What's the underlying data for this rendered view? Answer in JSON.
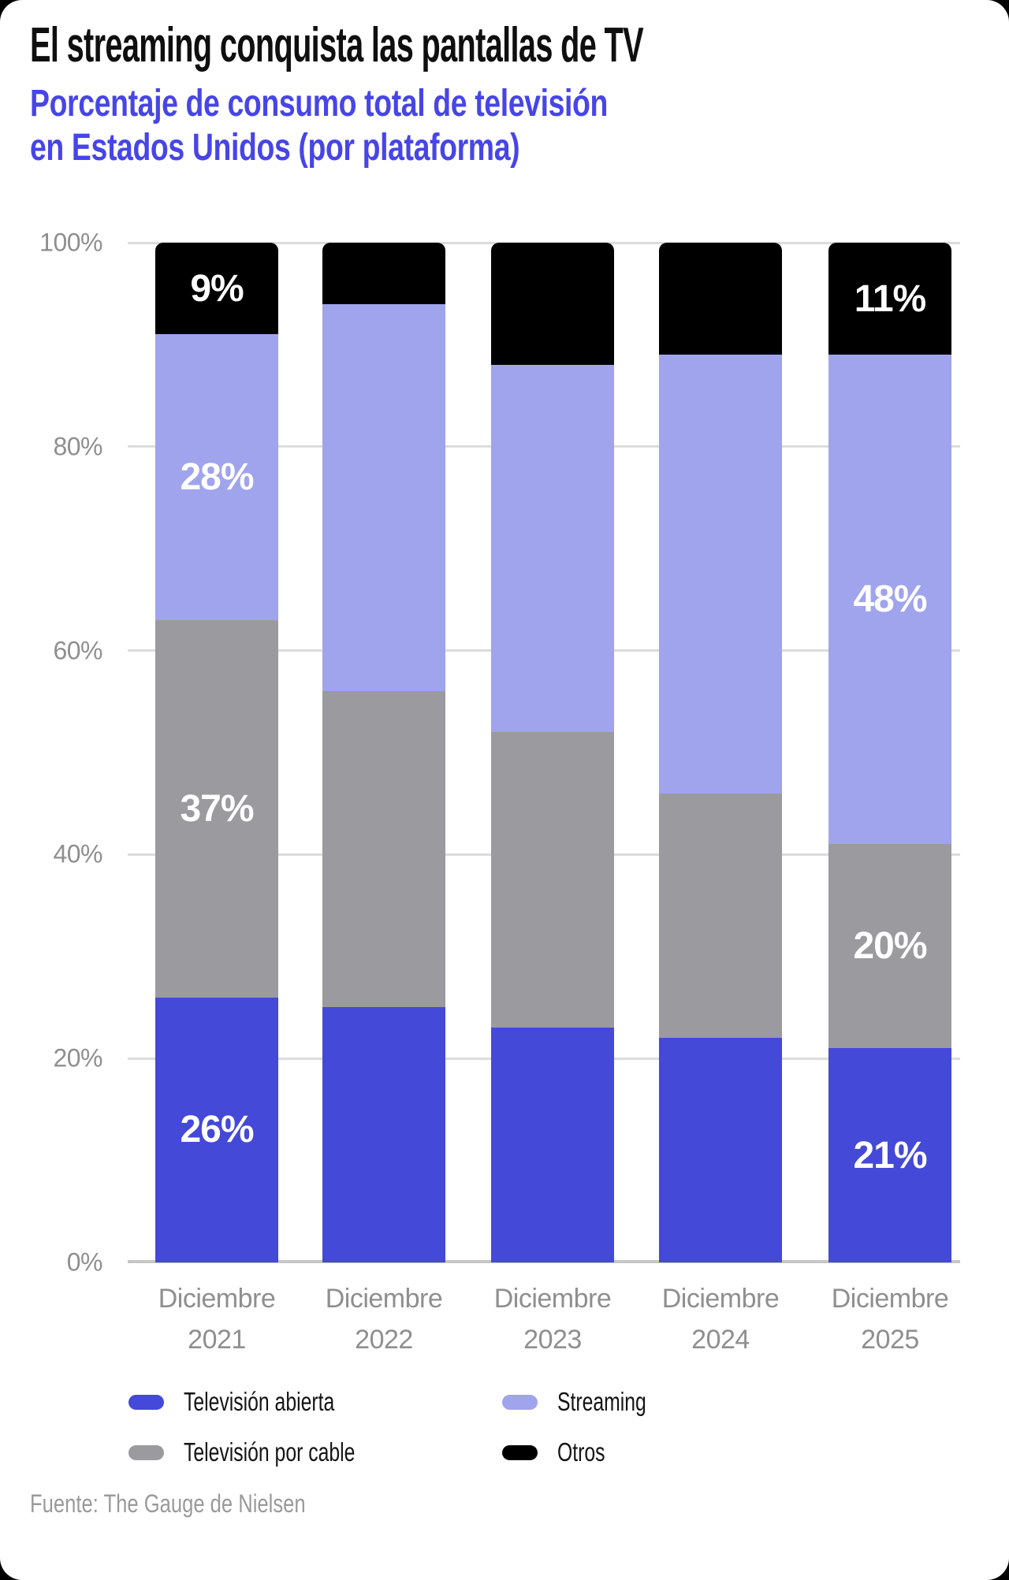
{
  "header": {
    "title": "El streaming conquista las pantallas de TV",
    "subtitle_line1": "Porcentaje de consumo total de televisión",
    "subtitle_line2": "en Estados Unidos (por plataforma)",
    "subtitle_color": "#4745e8"
  },
  "source": "Fuente: The Gauge de Nielsen",
  "chart_data": {
    "type": "bar",
    "stacked": true,
    "unit": "%",
    "title": "El streaming conquista las pantallas de TV",
    "subtitle": "Porcentaje de consumo total de televisión en Estados Unidos (por plataforma)",
    "categories": [
      "Diciembre 2021",
      "Diciembre 2022",
      "Diciembre 2023",
      "Diciembre 2024",
      "Diciembre 2025"
    ],
    "series": [
      {
        "name": "Televisión abierta",
        "color": "#4449d8",
        "values": [
          26,
          25,
          23,
          22,
          21
        ]
      },
      {
        "name": "Televisión por cable",
        "color": "#9a9a9f",
        "values": [
          37,
          31,
          29,
          24,
          20
        ]
      },
      {
        "name": "Streaming",
        "color": "#a0a4ec",
        "values": [
          28,
          38,
          36,
          43,
          48
        ]
      },
      {
        "name": "Otros",
        "color": "#000000",
        "values": [
          9,
          6,
          12,
          11,
          11
        ]
      }
    ],
    "bar_labels": {
      "0": [
        "26%",
        "37%",
        "28%",
        "9%"
      ],
      "4": [
        "21%",
        "20%",
        "48%",
        "11%"
      ]
    },
    "y_ticks": [
      "0%",
      "20%",
      "40%",
      "60%",
      "80%",
      "100%"
    ],
    "ylim": [
      0,
      100
    ],
    "grid": true,
    "legend_position": "bottom",
    "legend_display_order": [
      "Televisión abierta",
      "Streaming",
      "Televisión por cable",
      "Otros"
    ]
  }
}
